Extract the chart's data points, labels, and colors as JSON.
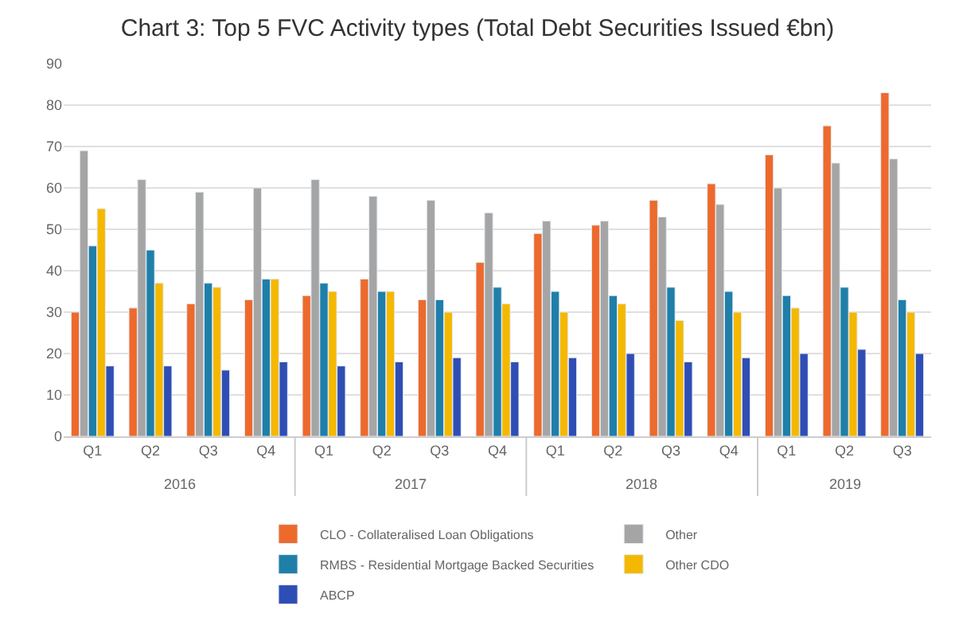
{
  "chart_data": {
    "type": "bar",
    "title": "Chart 3: Top 5 FVC Activity types (Total Debt Securities Issued €bn)",
    "categories": [
      "Q1",
      "Q2",
      "Q3",
      "Q4",
      "Q1",
      "Q2",
      "Q3",
      "Q4",
      "Q1",
      "Q2",
      "Q3",
      "Q4",
      "Q1",
      "Q2",
      "Q3"
    ],
    "annotations": [
      "2016",
      "2017",
      "2018",
      "2019"
    ],
    "series": [
      {
        "name": "CLO - Collateralised Loan Obligations",
        "color": "#ed6a2c",
        "values": [
          30,
          31,
          32,
          33,
          34,
          38,
          33,
          42,
          49,
          51,
          57,
          61,
          68,
          75,
          83
        ]
      },
      {
        "name": "Other",
        "color": "#a5a5a5",
        "values": [
          69,
          62,
          59,
          60,
          62,
          58,
          57,
          54,
          52,
          52,
          53,
          56,
          60,
          66,
          67
        ]
      },
      {
        "name": "RMBS - Residential Mortgage Backed Securities",
        "color": "#1f7fa8",
        "values": [
          46,
          45,
          37,
          38,
          37,
          35,
          33,
          36,
          35,
          34,
          36,
          35,
          34,
          36,
          33
        ]
      },
      {
        "name": "Other CDO",
        "color": "#f5b800",
        "values": [
          55,
          37,
          36,
          38,
          35,
          35,
          30,
          32,
          30,
          32,
          28,
          30,
          31,
          30,
          30
        ]
      },
      {
        "name": "ABCP",
        "color": "#2f4eb5",
        "values": [
          17,
          17,
          16,
          18,
          17,
          18,
          19,
          18,
          19,
          20,
          18,
          19,
          20,
          21,
          20
        ]
      }
    ],
    "ylim": [
      0,
      90
    ],
    "yticks": [
      0,
      10,
      20,
      30,
      40,
      50,
      60,
      70,
      80,
      90
    ],
    "grid": "y",
    "legend": "bottom"
  }
}
